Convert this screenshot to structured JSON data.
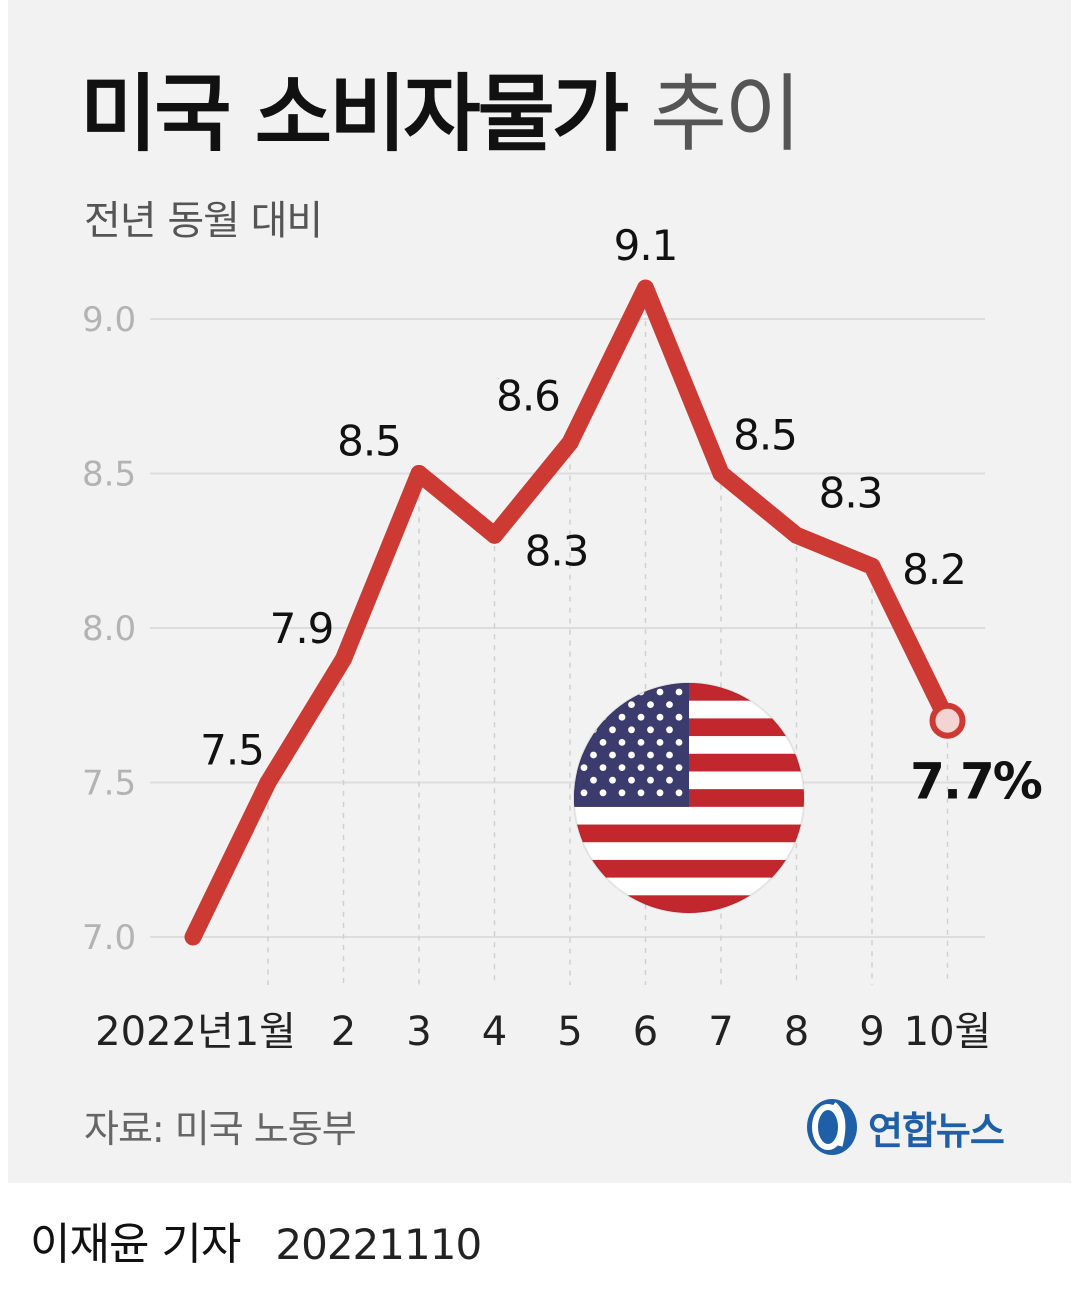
{
  "title_bold": "미국 소비자물가",
  "title_light": "추이",
  "subtitle": "전년 동월 대비",
  "source": "자료: 미국 노동부",
  "logo_text": "연합뉴스",
  "reporter": "이재윤 기자",
  "date": "20221110",
  "colors": {
    "line": "#cc3a33",
    "background": "#f2f2f2",
    "grid": "#dddddd",
    "logo": "#1f5fa8"
  },
  "flag_icon": "us-flag-icon",
  "chart_data": {
    "type": "line",
    "categories": [
      "2022년1월",
      "2",
      "3",
      "4",
      "5",
      "6",
      "7",
      "8",
      "9",
      "10월"
    ],
    "x_start_value": 7.0,
    "values": [
      7.5,
      7.9,
      8.5,
      8.3,
      8.6,
      9.1,
      8.5,
      8.3,
      8.2,
      7.7
    ],
    "data_labels": [
      "7.5",
      "7.9",
      "8.5",
      "8.3",
      "8.6",
      "9.1",
      "8.5",
      "8.3",
      "8.2",
      "7.7%"
    ],
    "yticks": [
      "7.0",
      "7.5",
      "8.0",
      "8.5",
      "9.0"
    ],
    "ylim": [
      7.0,
      9.0
    ],
    "grid": true,
    "xlabel": "",
    "ylabel": ""
  }
}
